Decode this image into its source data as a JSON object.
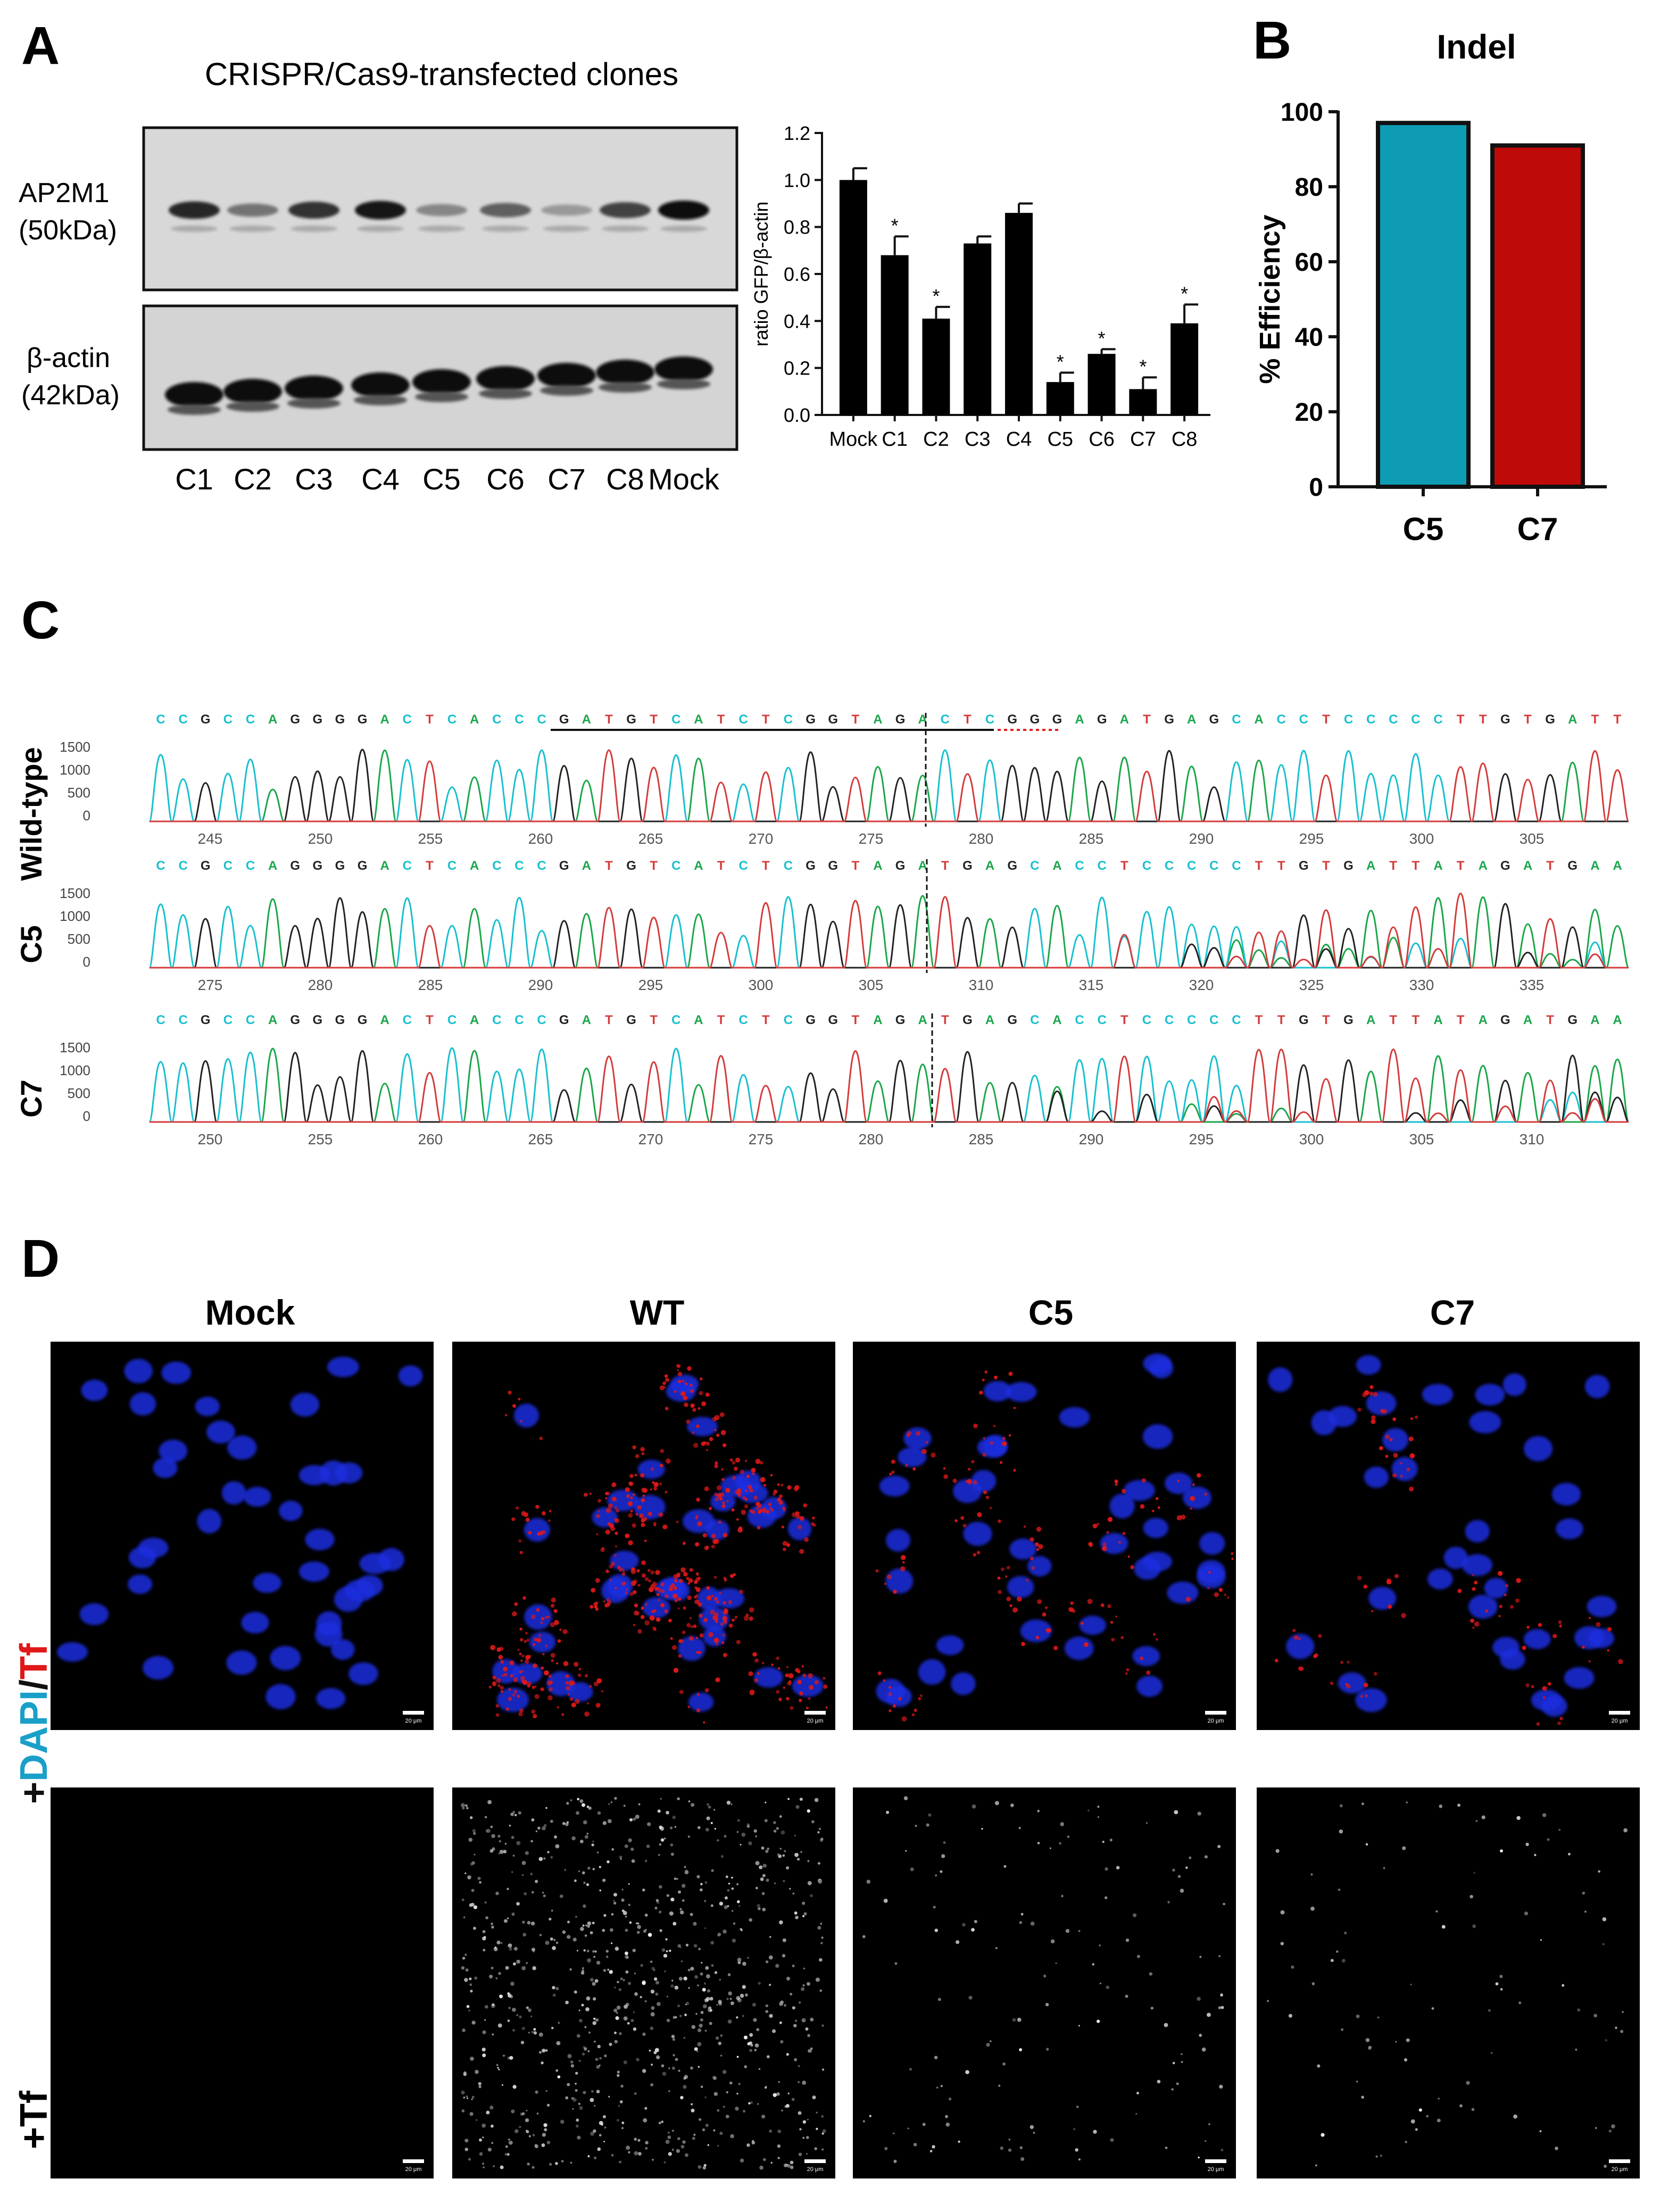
{
  "panels": {
    "A": {
      "letter": "A",
      "blot_title": "CRISPR/Cas9-transfected clones",
      "blot_top_label": [
        "AP2M1",
        "(50kDa)"
      ],
      "blot_bottom_label": [
        "β-actin",
        "(42kDa)"
      ],
      "lane_labels": [
        "C1",
        "C2",
        "C3",
        "C4",
        "C5",
        "C6",
        "C7",
        "C8",
        "Mock"
      ],
      "ap2m1_band_intensity": [
        0.85,
        0.45,
        0.8,
        0.95,
        0.35,
        0.55,
        0.25,
        0.7,
        1.0
      ],
      "actin_band_intensity": [
        1.0,
        1.0,
        1.0,
        1.0,
        1.0,
        1.0,
        1.0,
        1.0,
        1.0
      ]
    },
    "B": {
      "letter": "B"
    },
    "C": {
      "letter": "C",
      "tracks": [
        {
          "label": "Wild-type",
          "sequence": "CCGCCAGGGGACTCACCCGATGTCATCTCGGTAGACTCGGGAGATGAGCACCTCCCCCTTGTGATT",
          "yticks": [
            "1500",
            "1000",
            "500",
            "0"
          ],
          "xticks": [
            "245",
            "250",
            "255",
            "260",
            "265",
            "270",
            "275",
            "280",
            "285",
            "290",
            "295",
            "300",
            "305"
          ]
        },
        {
          "label": "C5",
          "sequence": "CCGCCAGGGGACTCACCCGATGTCATCTCGGTAGATGAGCACCTCCCCCTTGTGATTATAGATGAA",
          "yticks": [
            "1500",
            "1000",
            "500",
            "0"
          ],
          "xticks": [
            "275",
            "280",
            "285",
            "290",
            "295",
            "300",
            "305",
            "310",
            "315",
            "320",
            "325",
            "330",
            "335"
          ]
        },
        {
          "label": "C7",
          "sequence": "CCGCCAGGGGACTCACCCGATGTCATCTCGGTAGATGAGCACCTCCCCCTTGTGATTATAGATGAA",
          "yticks": [
            "1500",
            "1000",
            "500",
            "0"
          ],
          "xticks": [
            "250",
            "255",
            "260",
            "265",
            "270",
            "275",
            "280",
            "285",
            "290",
            "295",
            "300",
            "305",
            "310"
          ]
        }
      ],
      "base_colors": {
        "A": "#1aa64a",
        "C": "#17c0cf",
        "G": "#222222",
        "T": "#d43b3b"
      }
    },
    "D": {
      "letter": "D",
      "column_labels": [
        "Mock",
        "WT",
        "C5",
        "C7"
      ],
      "row1_label": {
        "prefix": "+",
        "dapi": "DAPI",
        "slash": "/",
        "tf": "Tf"
      },
      "row2_label": "+Tf",
      "scale_bar_text": "20 μm",
      "nuclei_color": "#1f2ee0",
      "tf_color": "#e01818"
    }
  },
  "chart_data": [
    {
      "type": "bar",
      "panel": "A",
      "categories": [
        "Mock",
        "C1",
        "C2",
        "C3",
        "C4",
        "C5",
        "C6",
        "C7",
        "C8"
      ],
      "values": [
        1.0,
        0.68,
        0.41,
        0.73,
        0.86,
        0.14,
        0.26,
        0.11,
        0.39
      ],
      "errors": [
        0.05,
        0.08,
        0.05,
        0.03,
        0.04,
        0.04,
        0.02,
        0.05,
        0.08
      ],
      "significance": [
        "",
        "*",
        "*",
        "",
        "",
        "*",
        "*",
        "*",
        "*"
      ],
      "title": "",
      "xlabel": "",
      "ylabel": "ratio GFP/β-actin",
      "ylim": [
        0,
        1.2
      ],
      "yticks": [
        "0.0",
        "0.2",
        "0.4",
        "0.6",
        "0.8",
        "1.0",
        "1.2"
      ],
      "bar_color": "#000000",
      "grid": false
    },
    {
      "type": "bar",
      "panel": "B",
      "categories": [
        "C5",
        "C7"
      ],
      "values": [
        97,
        91
      ],
      "title": "Indel",
      "xlabel": "",
      "ylabel": "% Efficiency",
      "ylim": [
        0,
        100
      ],
      "yticks": [
        "0",
        "20",
        "40",
        "60",
        "80",
        "100"
      ],
      "colors": [
        "#0e9cb4",
        "#bf0a0a"
      ],
      "grid": false
    }
  ]
}
